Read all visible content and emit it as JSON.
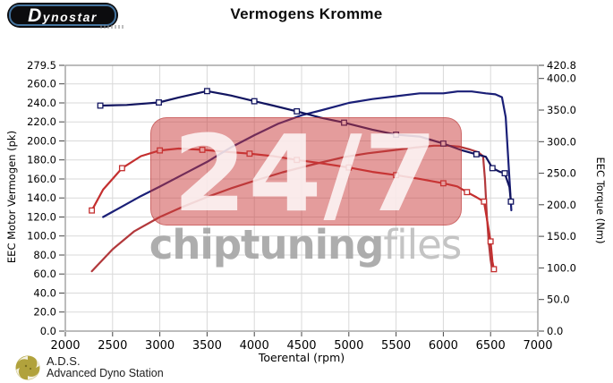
{
  "header": {
    "logo_text": "Dynostar",
    "title": "Vermogens Kromme"
  },
  "watermark": {
    "big": "24/7",
    "brand_bold": "chiptuning",
    "brand_light": "files"
  },
  "footer": {
    "abbr": "A.D.S.",
    "name": "Advanced Dyno Station"
  },
  "chart_data": {
    "type": "line",
    "title": "Vermogens Kromme",
    "xlabel": "Toerental (rpm)",
    "ylabel_left": "EEC Motor Vermogen (pk)",
    "ylabel_right": "EEC Torque (Nm)",
    "xlim": [
      2000,
      7000
    ],
    "ylim_left": [
      0,
      279.5
    ],
    "ylim_right": [
      0,
      420.8
    ],
    "x_ticks": [
      2000,
      2500,
      3000,
      3500,
      4000,
      4500,
      5000,
      5500,
      6000,
      6500,
      7000
    ],
    "y_ticks_left": [
      279.5,
      260.0,
      240.0,
      220.0,
      200.0,
      180.0,
      160.0,
      140.0,
      120.0,
      100.0,
      80.0,
      60.0,
      40.0,
      20.0,
      0.0
    ],
    "y_ticks_right": [
      420.8,
      400.0,
      350.0,
      300.0,
      250.0,
      200.0,
      150.0,
      100.0,
      50.0,
      0.0
    ],
    "grid": true,
    "legend": "none",
    "series": [
      {
        "name": "red-power",
        "axis": "left",
        "unit": "pk",
        "color": "#b2383b",
        "markers": false,
        "points": [
          [
            2280,
            63
          ],
          [
            2500,
            86
          ],
          [
            2730,
            105
          ],
          [
            3000,
            120
          ],
          [
            3250,
            131
          ],
          [
            3500,
            141
          ],
          [
            3750,
            150
          ],
          [
            4000,
            158
          ],
          [
            4300,
            167
          ],
          [
            4650,
            176
          ],
          [
            4950,
            183
          ],
          [
            5200,
            187
          ],
          [
            5450,
            190
          ],
          [
            5700,
            193
          ],
          [
            5900,
            195
          ],
          [
            6050,
            195
          ],
          [
            6170,
            194
          ],
          [
            6280,
            191
          ],
          [
            6370,
            188
          ],
          [
            6420,
            184
          ],
          [
            6440,
            160
          ],
          [
            6460,
            122
          ],
          [
            6480,
            94
          ],
          [
            6500,
            75
          ],
          [
            6515,
            66
          ]
        ]
      },
      {
        "name": "red-torque",
        "axis": "right",
        "unit": "Nm",
        "color": "#c42f2f",
        "markers": true,
        "points": [
          [
            2280,
            191
          ],
          [
            2400,
            224
          ],
          [
            2600,
            258
          ],
          [
            2800,
            277
          ],
          [
            3000,
            286
          ],
          [
            3200,
            289
          ],
          [
            3450,
            287
          ],
          [
            3700,
            284
          ],
          [
            3950,
            281
          ],
          [
            4200,
            277
          ],
          [
            4450,
            271
          ],
          [
            4700,
            266
          ],
          [
            5000,
            259
          ],
          [
            5250,
            252
          ],
          [
            5500,
            247
          ],
          [
            5750,
            241
          ],
          [
            6000,
            234
          ],
          [
            6150,
            229
          ],
          [
            6250,
            220
          ],
          [
            6350,
            212
          ],
          [
            6430,
            205
          ],
          [
            6470,
            170
          ],
          [
            6500,
            142
          ],
          [
            6520,
            110
          ],
          [
            6535,
            98
          ]
        ]
      },
      {
        "name": "navy-power",
        "axis": "left",
        "unit": "pk",
        "color": "#1a1f77",
        "markers": false,
        "points": [
          [
            2400,
            120
          ],
          [
            2600,
            131
          ],
          [
            2800,
            142
          ],
          [
            3000,
            152
          ],
          [
            3250,
            165
          ],
          [
            3500,
            178
          ],
          [
            3750,
            193
          ],
          [
            4000,
            206
          ],
          [
            4250,
            218
          ],
          [
            4500,
            227
          ],
          [
            4700,
            232
          ],
          [
            5000,
            240
          ],
          [
            5250,
            244
          ],
          [
            5500,
            247
          ],
          [
            5750,
            250
          ],
          [
            6000,
            250
          ],
          [
            6150,
            252
          ],
          [
            6300,
            252
          ],
          [
            6450,
            250
          ],
          [
            6550,
            249
          ],
          [
            6620,
            246
          ],
          [
            6660,
            225
          ],
          [
            6700,
            160
          ],
          [
            6720,
            127
          ]
        ]
      },
      {
        "name": "navy-torque",
        "axis": "right",
        "unit": "Nm",
        "color": "#121560",
        "markers": true,
        "points": [
          [
            2370,
            357
          ],
          [
            2650,
            358
          ],
          [
            2990,
            362
          ],
          [
            3200,
            370
          ],
          [
            3500,
            380
          ],
          [
            3750,
            373
          ],
          [
            4000,
            364
          ],
          [
            4200,
            357
          ],
          [
            4450,
            348
          ],
          [
            4700,
            338
          ],
          [
            4950,
            330
          ],
          [
            5250,
            319
          ],
          [
            5500,
            311
          ],
          [
            5750,
            308
          ],
          [
            6000,
            297
          ],
          [
            6200,
            286
          ],
          [
            6350,
            280
          ],
          [
            6450,
            276
          ],
          [
            6520,
            258
          ],
          [
            6600,
            252
          ],
          [
            6650,
            250
          ],
          [
            6700,
            228
          ],
          [
            6715,
            205
          ]
        ]
      }
    ]
  }
}
